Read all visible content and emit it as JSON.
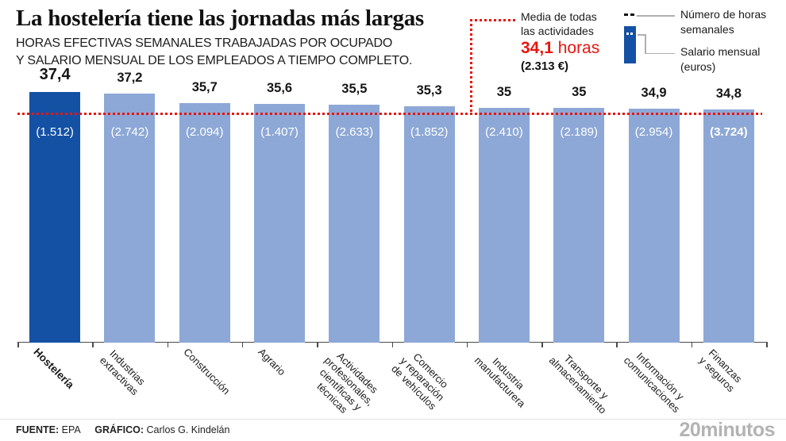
{
  "title": "La hostelería tiene las jornadas más largas",
  "subtitle": "HORAS EFECTIVAS SEMANALES TRABAJADAS POR OCUPADO\nY SALARIO MENSUAL DE LOS EMPLEADOS A TIEMPO COMPLETO.",
  "legend": {
    "average_label": "Media de todas\nlas actividades",
    "average_value": "34,1",
    "average_unit": " horas",
    "average_salary": "(2.313 €)",
    "hours_key_label": "Número de horas\nsemanales",
    "salary_key_label": "Salario mensual\n(euros)"
  },
  "footer": {
    "source_label": "FUENTE:",
    "source": "EPA",
    "credit_label": "GRÁFICO:",
    "credit": "Carlos G. Kindelán",
    "brand": "20minutos"
  },
  "colors": {
    "bar": "#8da8d6",
    "bar_highlight": "#1451a4",
    "accent_red": "#e8150f",
    "brand_gray": "#b3b3b3"
  },
  "chart_data": {
    "type": "bar",
    "title": "La hostelería tiene las jornadas más largas",
    "subtitle": "Horas efectivas semanales trabajadas por ocupado y salario mensual de los empleados a tiempo completo",
    "categories": [
      [
        "Hostelería"
      ],
      [
        "Industrias",
        "extractivas"
      ],
      [
        "Construcción"
      ],
      [
        "Agrario"
      ],
      [
        "Actividades",
        "profesionales,",
        "científicas y",
        "técnicas"
      ],
      [
        "Comercio",
        "y reparación",
        "de vehículos"
      ],
      [
        "Industria",
        "manufacturera"
      ],
      [
        "Transporte y",
        "almacenamiento"
      ],
      [
        "Información y",
        "comunicaciones"
      ],
      [
        "Finanzas",
        "y seguros"
      ]
    ],
    "series": [
      {
        "name": "Número de horas semanales",
        "values": [
          37.4,
          37.2,
          35.7,
          35.6,
          35.5,
          35.3,
          35,
          35,
          34.9,
          34.8
        ]
      },
      {
        "name": "Salario mensual (euros)",
        "values": [
          1512,
          2742,
          2094,
          1407,
          2633,
          1852,
          2410,
          2189,
          2954,
          3724
        ]
      }
    ],
    "value_labels": [
      "37,4",
      "37,2",
      "35,7",
      "35,6",
      "35,5",
      "35,3",
      "35",
      "35",
      "34,9",
      "34,8"
    ],
    "salary_labels": [
      "(1.512)",
      "(2.742)",
      "(2.094)",
      "(1.407)",
      "(2.633)",
      "(1.852)",
      "(2.410)",
      "(2.189)",
      "(2.954)",
      "(3.724)"
    ],
    "average": 34.1,
    "average_salary": 2313,
    "ylim": [
      0,
      38
    ],
    "highlight_index": 0,
    "bold_salary_index": 9,
    "grid": false,
    "legend_position": "top-right"
  }
}
